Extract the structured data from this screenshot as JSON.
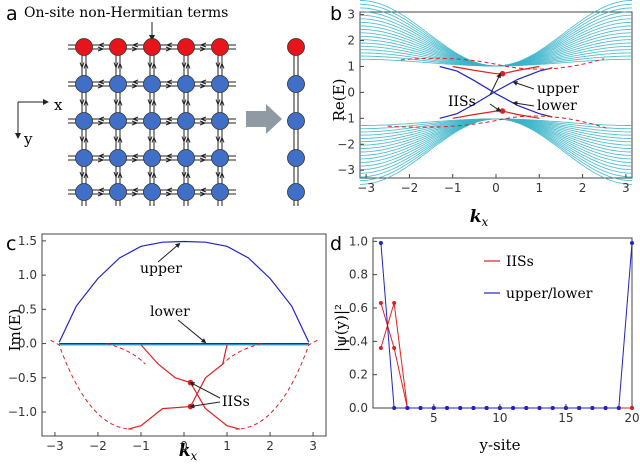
{
  "panels": {
    "a": "a",
    "b": "b",
    "c": "c",
    "d": "d"
  },
  "panel_a": {
    "annotation": "On-site non-Hermitian terms",
    "axis_x": "x",
    "axis_y": "y",
    "red_color": "#e8131b",
    "blue_color": "#3f6fc7"
  },
  "chart_data": [
    {
      "panel": "b",
      "type": "line",
      "ylabel": "Re(E)",
      "xlabel": "k_x",
      "xlim": [
        -3.14159,
        3.14159
      ],
      "ylim": [
        -3.3,
        3.1
      ],
      "xticks": [
        "−3",
        "−2",
        "−1",
        "0",
        "1",
        "2",
        "3"
      ],
      "yticks": [
        "−3",
        "−2",
        "−1",
        "0",
        "1",
        "2",
        "3"
      ],
      "bulk_band_color": "#37b4c9",
      "series": [
        {
          "name": "upper",
          "color": "#1f24c8",
          "x": [
            -1.3,
            -0.9,
            -0.5,
            0,
            0.5,
            1,
            1.3
          ],
          "y": [
            -1.0,
            -0.82,
            -0.45,
            0.05,
            0.5,
            0.82,
            0.95
          ]
        },
        {
          "name": "lower",
          "color": "#1f24c8",
          "x": [
            -1.3,
            -0.9,
            -0.5,
            0,
            0.5,
            1,
            1.3
          ],
          "y": [
            1.0,
            0.82,
            0.45,
            -0.05,
            -0.5,
            -0.82,
            -0.95
          ]
        },
        {
          "name": "IISs",
          "color": "#e02020",
          "x": [
            -1.0,
            -0.5,
            0,
            0.15,
            0.5,
            1.0
          ],
          "y": [
            1.0,
            0.85,
            0.72,
            0.72,
            0.85,
            1.0
          ]
        },
        {
          "name": "IISs",
          "color": "#e02020",
          "x": [
            -1.0,
            -0.5,
            0,
            0.15,
            0.5,
            1.0
          ],
          "y": [
            -1.0,
            -0.85,
            -0.72,
            -0.72,
            -0.85,
            -1.0
          ]
        }
      ],
      "markers": [
        {
          "x": 0.15,
          "y": 0.72
        },
        {
          "x": 0.15,
          "y": -0.72
        }
      ],
      "annotations": [
        "IISs",
        "upper",
        "lower"
      ]
    },
    {
      "panel": "c",
      "type": "line",
      "ylabel": "Im(E)",
      "xlabel": "k_x",
      "xlim": [
        -3.3,
        3.3
      ],
      "ylim": [
        -1.35,
        1.6
      ],
      "xticks": [
        "−3",
        "−2",
        "−1",
        "0",
        "1",
        "2",
        "3"
      ],
      "yticks": [
        "1.5",
        "1.0",
        "0.5",
        "0.0",
        "−0.5",
        "−1.0"
      ],
      "series": [
        {
          "name": "upper",
          "color": "#1f24c8",
          "x": [
            -2.9,
            -2.5,
            -2,
            -1.5,
            -1,
            -0.5,
            0,
            0.5,
            1,
            1.5,
            2,
            2.5,
            2.9
          ],
          "y": [
            0.02,
            0.55,
            0.95,
            1.25,
            1.42,
            1.48,
            1.49,
            1.48,
            1.42,
            1.25,
            0.95,
            0.55,
            0.02
          ]
        },
        {
          "name": "lower",
          "color": "#1f24c8",
          "x": [
            -2.9,
            0,
            2.9
          ],
          "y": [
            0,
            0,
            0
          ]
        },
        {
          "name": "IISs",
          "color": "#e02020",
          "x": [
            -1.0,
            -0.6,
            -0.2,
            0.15,
            0.5,
            1.0,
            1.3
          ],
          "y": [
            -0.02,
            -0.3,
            -0.5,
            -0.57,
            -0.95,
            -1.2,
            -1.25
          ]
        },
        {
          "name": "IISs",
          "color": "#e02020",
          "x": [
            -1.3,
            -1.0,
            -0.5,
            0.15,
            0.5,
            0.9,
            1.0
          ],
          "y": [
            -1.25,
            -1.2,
            -0.95,
            -0.92,
            -0.5,
            -0.3,
            -0.02
          ]
        }
      ],
      "markers": [
        {
          "x": 0.15,
          "y": -0.57
        },
        {
          "x": 0.15,
          "y": -0.92
        }
      ],
      "annotations": [
        "upper",
        "lower",
        "IISs"
      ]
    },
    {
      "panel": "d",
      "type": "line",
      "ylabel": "|ψ(y)|²",
      "xlabel": "y-site",
      "xlim": [
        0,
        20
      ],
      "ylim": [
        0,
        1.0
      ],
      "xticks": [
        "5",
        "10",
        "15",
        "20"
      ],
      "yticks": [
        "1.0",
        "0.8",
        "0.6",
        "0.4",
        "0.2",
        "0.0"
      ],
      "series": [
        {
          "name": "IISs",
          "color": "#e02020",
          "x": [
            1,
            2,
            3,
            4,
            5,
            6,
            7,
            8,
            9,
            10,
            11,
            12,
            13,
            14,
            15,
            16,
            17,
            18,
            19,
            20
          ],
          "y": [
            0.63,
            0.36,
            0,
            0,
            0,
            0,
            0,
            0,
            0,
            0,
            0,
            0,
            0,
            0,
            0,
            0,
            0,
            0,
            0,
            0
          ]
        },
        {
          "name": "IISs",
          "color": "#e02020",
          "x": [
            1,
            2,
            3,
            4,
            5,
            6,
            7,
            8,
            9,
            10,
            11,
            12,
            13,
            14,
            15,
            16,
            17,
            18,
            19,
            20
          ],
          "y": [
            0.36,
            0.63,
            0,
            0,
            0,
            0,
            0,
            0,
            0,
            0,
            0,
            0,
            0,
            0,
            0,
            0,
            0,
            0,
            0,
            0
          ]
        },
        {
          "name": "upper/lower",
          "color": "#1f24c8",
          "x": [
            1,
            2,
            3,
            4,
            5,
            6,
            7,
            8,
            9,
            10,
            11,
            12,
            13,
            14,
            15,
            16,
            17,
            18,
            19,
            20
          ],
          "y": [
            0.99,
            0,
            0,
            0,
            0,
            0,
            0,
            0,
            0,
            0,
            0,
            0,
            0,
            0,
            0,
            0,
            0,
            0,
            0,
            0.99
          ]
        }
      ],
      "legend": [
        "IISs",
        "upper/lower"
      ]
    }
  ]
}
